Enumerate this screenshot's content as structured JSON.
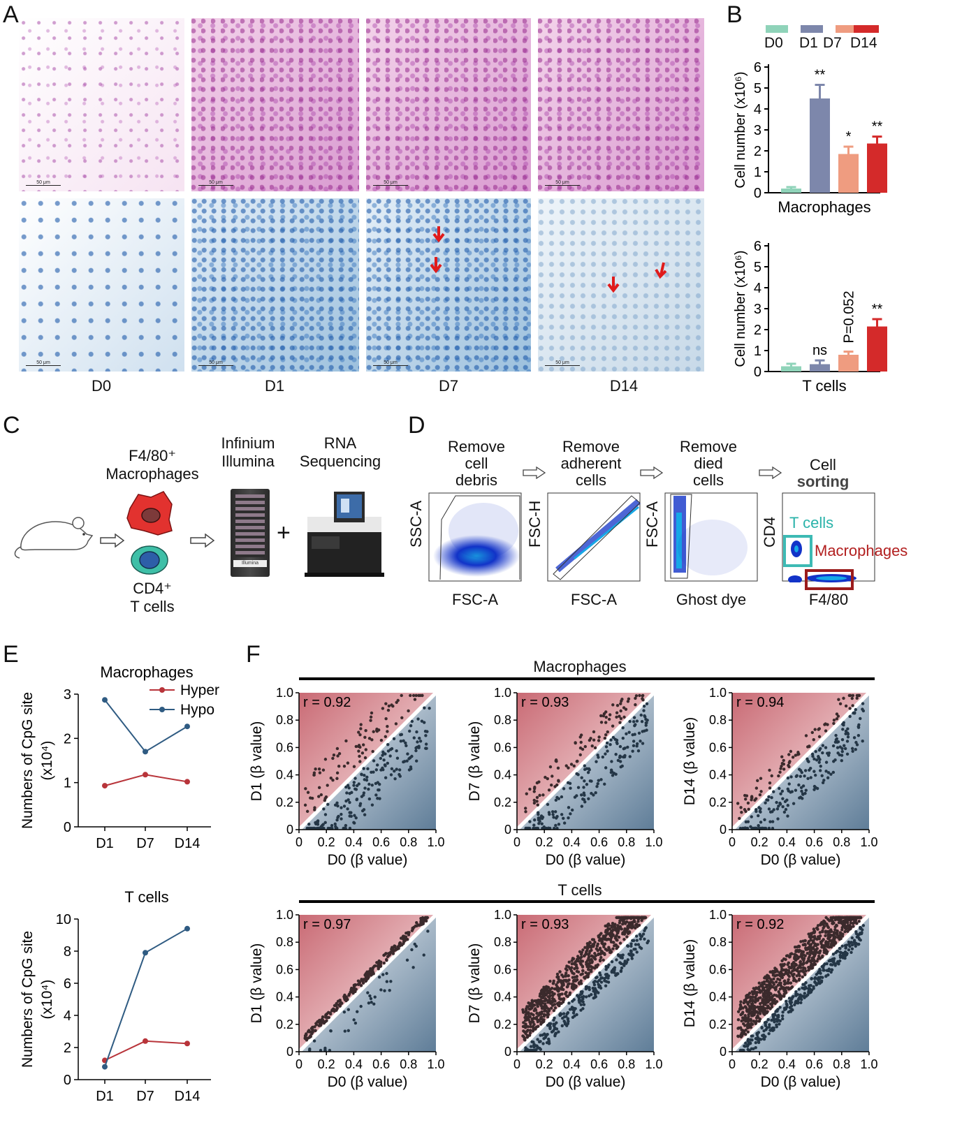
{
  "panel_labels": {
    "A": "A",
    "B": "B",
    "C": "C",
    "D": "D",
    "E": "E",
    "F": "F"
  },
  "panel_a": {
    "scale_bar": "50 μm",
    "day_labels": [
      "D0",
      "D1",
      "D7",
      "D14"
    ]
  },
  "panel_b": {
    "legend": [
      {
        "label": "D0",
        "color": "#8fd3b9"
      },
      {
        "label": "D1",
        "color": "#7d87ab"
      },
      {
        "label": "D7",
        "color": "#ef9c80"
      },
      {
        "label": "D14",
        "color": "#d42a2a"
      }
    ],
    "ylabel": "Cell number (x10⁶)"
  },
  "panel_c": {
    "f480_line1": "F4/80⁺",
    "f480_line2": "Macrophages",
    "cd4_line1": "CD4⁺",
    "cd4_line2": "T cells",
    "infinium_line1": "Infinium",
    "infinium_line2": "Illumina",
    "rna_line1": "RNA",
    "rna_line2": "Sequencing",
    "plus": "+",
    "chip_brand": "Illumina"
  },
  "panel_d": {
    "steps": [
      {
        "line1": "Remove",
        "line2": "cell",
        "line3": "debris",
        "xlabel": "FSC-A",
        "ylabel": "SSC-A"
      },
      {
        "line1": "Remove",
        "line2": "adherent",
        "line3": "cells",
        "xlabel": "FSC-A",
        "ylabel": "FSC-H"
      },
      {
        "line1": "Remove",
        "line2": "died",
        "line3": "cells",
        "xlabel": "Ghost dye",
        "ylabel": "FSC-A"
      },
      {
        "line1": "Cell",
        "line2": "sorting",
        "line3": "",
        "xlabel": "F4/80",
        "ylabel": "CD4"
      }
    ],
    "gate_tcells": "T cells",
    "gate_macrophages": "Macrophages"
  },
  "panel_e_legend": {
    "hyper": "Hyper",
    "hypo": "Hypo",
    "hyper_color": "#b8343a",
    "hypo_color": "#2f5b82"
  },
  "panel_f_headers": {
    "macrophages": "Macrophages",
    "tcells": "T cells"
  },
  "chart_data": [
    {
      "id": "b-macrophages",
      "type": "bar",
      "categories": [
        "D0",
        "D1",
        "D7",
        "D14"
      ],
      "values": [
        0.2,
        4.5,
        1.85,
        2.35
      ],
      "errors": [
        0.07,
        0.65,
        0.35,
        0.33
      ],
      "significance": [
        "",
        "**",
        "*",
        "**"
      ],
      "xlabel": "Macrophages",
      "ylabel": "Cell number (x10⁶)",
      "ylim": [
        0,
        6
      ],
      "yticks": [
        0,
        1,
        2,
        3,
        4,
        5,
        6
      ]
    },
    {
      "id": "b-tcells",
      "type": "bar",
      "categories": [
        "D0",
        "D1",
        "D7",
        "D14"
      ],
      "values": [
        0.25,
        0.35,
        0.8,
        2.15
      ],
      "errors": [
        0.12,
        0.18,
        0.15,
        0.35
      ],
      "significance": [
        "",
        "ns",
        "P=0.052",
        "**"
      ],
      "xlabel": "T cells",
      "ylabel": "Cell number (x10⁶)",
      "ylim": [
        0,
        6
      ],
      "yticks": [
        0,
        1,
        2,
        3,
        4,
        5,
        6
      ]
    },
    {
      "id": "e-macrophages",
      "type": "line",
      "title": "Macrophages",
      "categories": [
        "D1",
        "D7",
        "D14"
      ],
      "series": [
        {
          "name": "Hyper",
          "values": [
            0.93,
            1.18,
            1.02
          ],
          "color": "#b8343a"
        },
        {
          "name": "Hypo",
          "values": [
            2.87,
            1.7,
            2.27
          ],
          "color": "#2f5b82"
        }
      ],
      "ylabel": "Numbers of CpG site (x10⁴)",
      "ylim": [
        0,
        3
      ],
      "yticks": [
        0,
        1,
        2,
        3
      ],
      "legend": "top-right"
    },
    {
      "id": "e-tcells",
      "type": "line",
      "title": "T cells",
      "categories": [
        "D1",
        "D7",
        "D14"
      ],
      "series": [
        {
          "values": [
            1.2,
            2.4,
            2.25
          ],
          "color": "#b8343a"
        },
        {
          "values": [
            0.8,
            7.9,
            9.4
          ],
          "color": "#2f5b82"
        }
      ],
      "ylabel": "Numbers of CpG site (x10⁴)",
      "ylim": [
        0,
        10
      ],
      "yticks": [
        0,
        2,
        4,
        6,
        8,
        10
      ]
    },
    {
      "id": "f-m1",
      "type": "scatter",
      "annotation": "r = 0.92",
      "xlabel": "D0 (β value)",
      "ylabel": "D1 (β value)",
      "xlim": [
        0,
        1
      ],
      "ylim": [
        0,
        1
      ],
      "ticks": [
        "0",
        "0.2",
        "0.4",
        "0.6",
        "0.8",
        "1.0"
      ]
    },
    {
      "id": "f-m2",
      "type": "scatter",
      "annotation": "r = 0.93",
      "xlabel": "D0 (β value)",
      "ylabel": "D7 (β value)",
      "xlim": [
        0,
        1
      ],
      "ylim": [
        0,
        1
      ],
      "ticks": [
        "0",
        "0.2",
        "0.4",
        "0.6",
        "0.8",
        "1.0"
      ]
    },
    {
      "id": "f-m3",
      "type": "scatter",
      "annotation": "r = 0.94",
      "xlabel": "D0 (β value)",
      "ylabel": "D14 (β value)",
      "xlim": [
        0,
        1
      ],
      "ylim": [
        0,
        1
      ],
      "ticks": [
        "0",
        "0.2",
        "0.4",
        "0.6",
        "0.8",
        "1.0"
      ]
    },
    {
      "id": "f-t1",
      "type": "scatter",
      "annotation": "r = 0.97",
      "xlabel": "D0 (β value)",
      "ylabel": "D1 (β value)",
      "xlim": [
        0,
        1
      ],
      "ylim": [
        0,
        1
      ],
      "ticks": [
        "0",
        "0.2",
        "0.4",
        "0.6",
        "0.8",
        "1.0"
      ]
    },
    {
      "id": "f-t2",
      "type": "scatter",
      "annotation": "r = 0.93",
      "xlabel": "D0 (β value)",
      "ylabel": "D7 (β value)",
      "xlim": [
        0,
        1
      ],
      "ylim": [
        0,
        1
      ],
      "ticks": [
        "0",
        "0.2",
        "0.4",
        "0.6",
        "0.8",
        "1.0"
      ]
    },
    {
      "id": "f-t3",
      "type": "scatter",
      "annotation": "r = 0.92",
      "xlabel": "D0 (β value)",
      "ylabel": "D14 (β value)",
      "xlim": [
        0,
        1
      ],
      "ylim": [
        0,
        1
      ],
      "ticks": [
        "0",
        "0.2",
        "0.4",
        "0.6",
        "0.8",
        "1.0"
      ]
    }
  ]
}
